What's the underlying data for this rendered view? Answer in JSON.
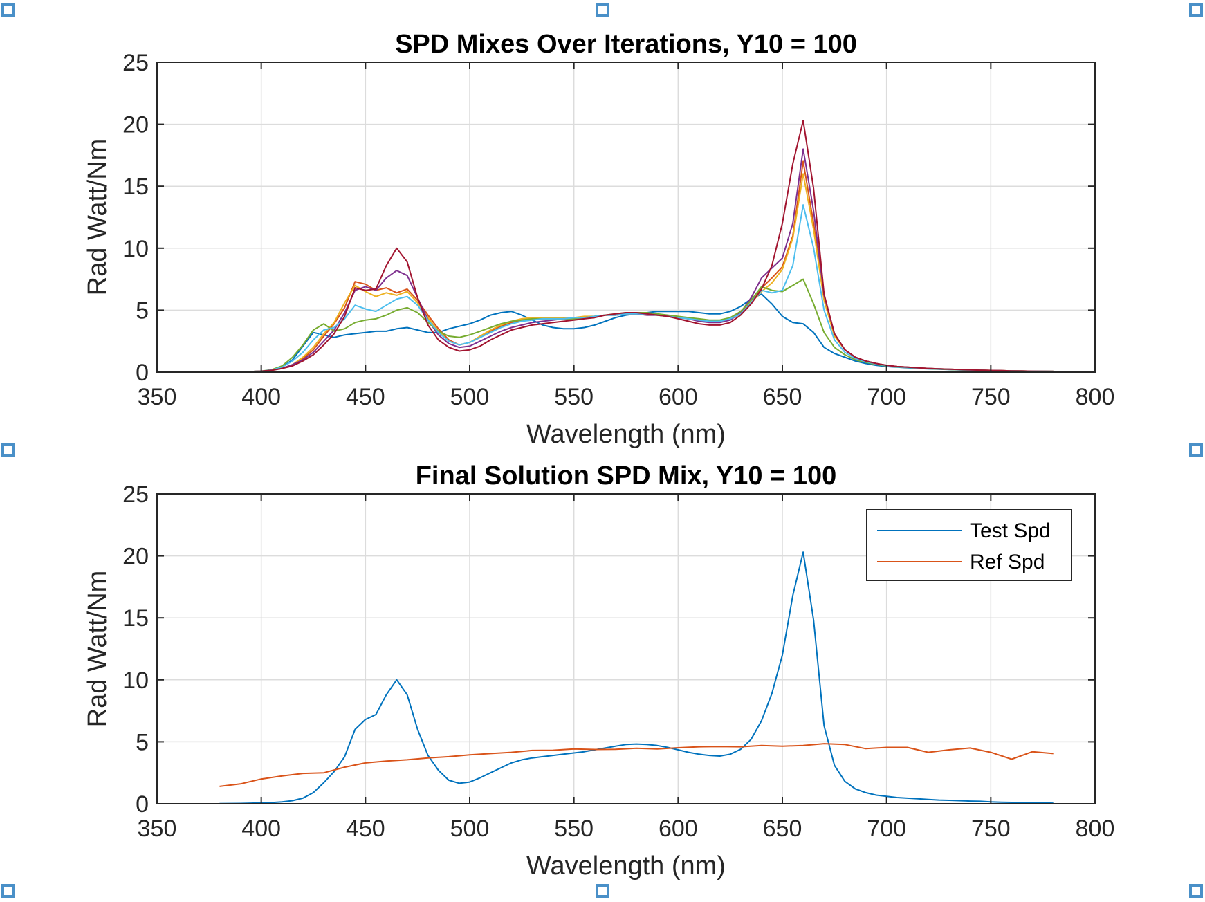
{
  "chart_data": [
    {
      "type": "line",
      "title": "SPD Mixes Over Iterations, Y10 = 100",
      "xlabel": "Wavelength (nm)",
      "ylabel": "Rad Watt/Nm",
      "xlim": [
        350,
        800
      ],
      "ylim": [
        0,
        25
      ],
      "xticks": [
        350,
        400,
        450,
        500,
        550,
        600,
        650,
        700,
        750,
        800
      ],
      "yticks": [
        0,
        5,
        10,
        15,
        20,
        25
      ],
      "grid": true,
      "x": [
        380,
        385,
        390,
        395,
        400,
        405,
        410,
        415,
        420,
        425,
        430,
        435,
        440,
        445,
        450,
        455,
        460,
        465,
        470,
        475,
        480,
        485,
        490,
        495,
        500,
        505,
        510,
        515,
        520,
        525,
        530,
        535,
        540,
        545,
        550,
        555,
        560,
        565,
        570,
        575,
        580,
        585,
        590,
        595,
        600,
        605,
        610,
        615,
        620,
        625,
        630,
        635,
        640,
        645,
        650,
        655,
        660,
        665,
        670,
        675,
        680,
        685,
        690,
        695,
        700,
        705,
        710,
        715,
        720,
        725,
        730,
        735,
        740,
        745,
        750,
        755,
        760,
        765,
        770,
        775,
        780
      ],
      "series_colors": [
        "#0072BD",
        "#D95319",
        "#EDB120",
        "#7E2F8E",
        "#77AC30",
        "#4DBEEE",
        "#A2142F"
      ],
      "series": [
        {
          "values": [
            0.01,
            0.02,
            0.03,
            0.05,
            0.08,
            0.15,
            0.4,
            1.0,
            2.1,
            3.2,
            3.0,
            2.8,
            3.0,
            3.1,
            3.2,
            3.3,
            3.3,
            3.5,
            3.6,
            3.4,
            3.2,
            3.2,
            3.5,
            3.7,
            3.9,
            4.2,
            4.6,
            4.8,
            4.9,
            4.6,
            4.2,
            3.8,
            3.6,
            3.5,
            3.5,
            3.6,
            3.8,
            4.1,
            4.4,
            4.6,
            4.7,
            4.8,
            4.9,
            4.9,
            4.9,
            4.9,
            4.8,
            4.7,
            4.7,
            4.9,
            5.3,
            5.9,
            6.3,
            5.5,
            4.5,
            4.0,
            3.9,
            3.2,
            2.0,
            1.5,
            1.2,
            0.9,
            0.7,
            0.55,
            0.45,
            0.4,
            0.35,
            0.3,
            0.27,
            0.24,
            0.21,
            0.18,
            0.16,
            0.14,
            0.12,
            0.1,
            0.09,
            0.08,
            0.07,
            0.06,
            0.05
          ]
        },
        {
          "values": [
            0.01,
            0.02,
            0.03,
            0.05,
            0.08,
            0.15,
            0.3,
            0.6,
            1.1,
            1.8,
            2.9,
            3.9,
            5.2,
            7.3,
            7.1,
            6.6,
            6.8,
            6.4,
            6.7,
            5.8,
            4.6,
            3.5,
            2.6,
            2.2,
            2.4,
            2.8,
            3.3,
            3.7,
            4.0,
            4.2,
            4.3,
            4.4,
            4.4,
            4.4,
            4.4,
            4.4,
            4.5,
            4.6,
            4.6,
            4.7,
            4.7,
            4.7,
            4.6,
            4.5,
            4.4,
            4.3,
            4.2,
            4.1,
            4.1,
            4.3,
            4.8,
            5.8,
            6.8,
            7.6,
            8.5,
            11.0,
            17.0,
            12.0,
            6.0,
            3.0,
            1.8,
            1.2,
            0.9,
            0.7,
            0.55,
            0.45,
            0.4,
            0.35,
            0.3,
            0.27,
            0.24,
            0.21,
            0.18,
            0.16,
            0.14,
            0.12,
            0.1,
            0.09,
            0.08,
            0.07,
            0.06
          ]
        },
        {
          "values": [
            0.01,
            0.02,
            0.03,
            0.05,
            0.08,
            0.15,
            0.3,
            0.6,
            1.2,
            2.0,
            3.1,
            4.0,
            5.6,
            7.0,
            6.5,
            6.1,
            6.4,
            6.2,
            6.5,
            5.6,
            4.4,
            3.3,
            2.5,
            2.2,
            2.4,
            2.9,
            3.4,
            3.8,
            4.1,
            4.3,
            4.4,
            4.4,
            4.4,
            4.4,
            4.4,
            4.5,
            4.5,
            4.6,
            4.6,
            4.7,
            4.7,
            4.6,
            4.6,
            4.5,
            4.4,
            4.3,
            4.2,
            4.1,
            4.1,
            4.3,
            4.7,
            5.6,
            6.5,
            7.2,
            8.3,
            10.8,
            16.0,
            11.5,
            5.8,
            2.9,
            1.8,
            1.2,
            0.9,
            0.7,
            0.55,
            0.45,
            0.4,
            0.35,
            0.3,
            0.27,
            0.24,
            0.21,
            0.18,
            0.16,
            0.14,
            0.12,
            0.1,
            0.09,
            0.08,
            0.07,
            0.06
          ]
        },
        {
          "values": [
            0.01,
            0.02,
            0.03,
            0.05,
            0.08,
            0.15,
            0.3,
            0.6,
            1.0,
            1.6,
            2.5,
            3.4,
            4.8,
            6.6,
            6.9,
            6.6,
            7.6,
            8.2,
            7.8,
            6.0,
            4.2,
            3.0,
            2.3,
            2.0,
            2.1,
            2.5,
            2.9,
            3.3,
            3.6,
            3.8,
            4.0,
            4.1,
            4.2,
            4.3,
            4.3,
            4.4,
            4.5,
            4.6,
            4.6,
            4.7,
            4.7,
            4.6,
            4.6,
            4.5,
            4.4,
            4.3,
            4.1,
            4.0,
            4.0,
            4.2,
            4.8,
            6.0,
            7.6,
            8.4,
            9.2,
            12.0,
            18.0,
            13.0,
            6.2,
            3.1,
            1.8,
            1.2,
            0.9,
            0.7,
            0.55,
            0.45,
            0.4,
            0.35,
            0.3,
            0.27,
            0.24,
            0.21,
            0.18,
            0.16,
            0.14,
            0.12,
            0.1,
            0.09,
            0.08,
            0.07,
            0.06
          ]
        },
        {
          "values": [
            0.01,
            0.02,
            0.03,
            0.05,
            0.08,
            0.2,
            0.5,
            1.2,
            2.2,
            3.4,
            3.9,
            3.3,
            3.5,
            4.0,
            4.2,
            4.3,
            4.6,
            5.0,
            5.2,
            4.8,
            4.0,
            3.3,
            2.9,
            2.8,
            3.0,
            3.3,
            3.6,
            3.9,
            4.1,
            4.2,
            4.3,
            4.3,
            4.3,
            4.3,
            4.3,
            4.4,
            4.5,
            4.6,
            4.7,
            4.8,
            4.8,
            4.8,
            4.7,
            4.6,
            4.5,
            4.4,
            4.3,
            4.2,
            4.2,
            4.4,
            4.9,
            5.8,
            6.9,
            6.6,
            6.5,
            7.0,
            7.5,
            5.5,
            3.2,
            2.0,
            1.4,
            1.0,
            0.8,
            0.62,
            0.5,
            0.42,
            0.37,
            0.32,
            0.28,
            0.25,
            0.22,
            0.19,
            0.17,
            0.15,
            0.13,
            0.11,
            0.1,
            0.09,
            0.08,
            0.07,
            0.06
          ]
        },
        {
          "values": [
            0.01,
            0.02,
            0.03,
            0.05,
            0.08,
            0.18,
            0.4,
            0.9,
            1.6,
            2.6,
            3.4,
            3.6,
            4.3,
            5.4,
            5.1,
            4.9,
            5.4,
            5.9,
            6.1,
            5.4,
            4.2,
            3.2,
            2.5,
            2.2,
            2.4,
            2.8,
            3.2,
            3.6,
            3.9,
            4.1,
            4.2,
            4.3,
            4.3,
            4.3,
            4.4,
            4.4,
            4.5,
            4.6,
            4.6,
            4.7,
            4.7,
            4.7,
            4.6,
            4.5,
            4.4,
            4.3,
            4.2,
            4.1,
            4.1,
            4.3,
            4.7,
            5.6,
            6.6,
            6.4,
            6.6,
            8.6,
            13.5,
            10.0,
            5.0,
            2.6,
            1.6,
            1.1,
            0.85,
            0.66,
            0.52,
            0.43,
            0.38,
            0.33,
            0.29,
            0.26,
            0.23,
            0.2,
            0.17,
            0.15,
            0.13,
            0.11,
            0.1,
            0.09,
            0.08,
            0.07,
            0.06
          ]
        },
        {
          "values": [
            0.01,
            0.02,
            0.03,
            0.05,
            0.08,
            0.15,
            0.3,
            0.5,
            0.9,
            1.4,
            2.2,
            3.1,
            4.5,
            6.8,
            6.6,
            6.7,
            8.6,
            10.0,
            8.9,
            6.0,
            3.8,
            2.6,
            2.0,
            1.7,
            1.8,
            2.1,
            2.6,
            3.0,
            3.4,
            3.6,
            3.8,
            3.9,
            4.0,
            4.1,
            4.2,
            4.3,
            4.4,
            4.6,
            4.7,
            4.8,
            4.8,
            4.7,
            4.6,
            4.5,
            4.3,
            4.1,
            3.9,
            3.8,
            3.8,
            4.0,
            4.6,
            5.5,
            6.7,
            8.6,
            12.0,
            16.8,
            20.3,
            14.8,
            6.3,
            3.1,
            1.8,
            1.2,
            0.9,
            0.7,
            0.55,
            0.45,
            0.4,
            0.35,
            0.3,
            0.27,
            0.24,
            0.21,
            0.18,
            0.16,
            0.14,
            0.12,
            0.1,
            0.09,
            0.08,
            0.07,
            0.06
          ]
        }
      ]
    },
    {
      "type": "line",
      "title": "Final Solution SPD Mix, Y10 = 100",
      "xlabel": "Wavelength (nm)",
      "ylabel": "Rad Watt/Nm",
      "xlim": [
        350,
        800
      ],
      "ylim": [
        0,
        25
      ],
      "xticks": [
        350,
        400,
        450,
        500,
        550,
        600,
        650,
        700,
        750,
        800
      ],
      "yticks": [
        0,
        5,
        10,
        15,
        20,
        25
      ],
      "grid": true,
      "legend_position": "top-right",
      "series": [
        {
          "name": "Test Spd",
          "color": "#0072BD",
          "x": [
            380,
            385,
            390,
            395,
            400,
            405,
            410,
            415,
            420,
            425,
            430,
            435,
            440,
            445,
            450,
            455,
            460,
            465,
            470,
            475,
            480,
            485,
            490,
            495,
            500,
            505,
            510,
            515,
            520,
            525,
            530,
            535,
            540,
            545,
            550,
            555,
            560,
            565,
            570,
            575,
            580,
            585,
            590,
            595,
            600,
            605,
            610,
            615,
            620,
            625,
            630,
            635,
            640,
            645,
            650,
            655,
            660,
            665,
            670,
            675,
            680,
            685,
            690,
            695,
            700,
            705,
            710,
            715,
            720,
            725,
            730,
            735,
            740,
            745,
            750,
            755,
            760,
            765,
            770,
            775,
            780
          ],
          "values": [
            0.01,
            0.02,
            0.03,
            0.05,
            0.08,
            0.1,
            0.15,
            0.25,
            0.45,
            0.9,
            1.7,
            2.6,
            3.8,
            6.0,
            6.8,
            7.2,
            8.8,
            10.0,
            8.8,
            6.0,
            3.9,
            2.7,
            1.9,
            1.65,
            1.75,
            2.1,
            2.5,
            2.9,
            3.3,
            3.55,
            3.7,
            3.8,
            3.9,
            4.0,
            4.1,
            4.2,
            4.35,
            4.5,
            4.65,
            4.78,
            4.82,
            4.78,
            4.7,
            4.55,
            4.35,
            4.15,
            4.0,
            3.9,
            3.85,
            4.0,
            4.4,
            5.2,
            6.7,
            8.9,
            12.0,
            16.8,
            20.3,
            14.8,
            6.3,
            3.1,
            1.8,
            1.2,
            0.9,
            0.7,
            0.6,
            0.5,
            0.45,
            0.4,
            0.35,
            0.3,
            0.28,
            0.25,
            0.22,
            0.2,
            0.15,
            0.13,
            0.11,
            0.1,
            0.09,
            0.08,
            0.05
          ]
        },
        {
          "name": "Ref Spd",
          "color": "#D95319",
          "x": [
            380,
            390,
            400,
            410,
            420,
            430,
            440,
            450,
            460,
            470,
            480,
            490,
            500,
            510,
            520,
            530,
            540,
            550,
            560,
            570,
            580,
            590,
            600,
            610,
            620,
            630,
            640,
            650,
            660,
            670,
            680,
            690,
            700,
            710,
            720,
            730,
            740,
            750,
            760,
            770,
            780
          ],
          "values": [
            1.4,
            1.6,
            2.0,
            2.25,
            2.45,
            2.5,
            2.95,
            3.3,
            3.45,
            3.55,
            3.7,
            3.8,
            3.95,
            4.05,
            4.15,
            4.3,
            4.32,
            4.42,
            4.38,
            4.4,
            4.48,
            4.42,
            4.52,
            4.6,
            4.62,
            4.6,
            4.7,
            4.65,
            4.7,
            4.85,
            4.78,
            4.45,
            4.55,
            4.55,
            4.15,
            4.35,
            4.5,
            4.15,
            3.6,
            4.2,
            4.05
          ]
        }
      ]
    }
  ]
}
